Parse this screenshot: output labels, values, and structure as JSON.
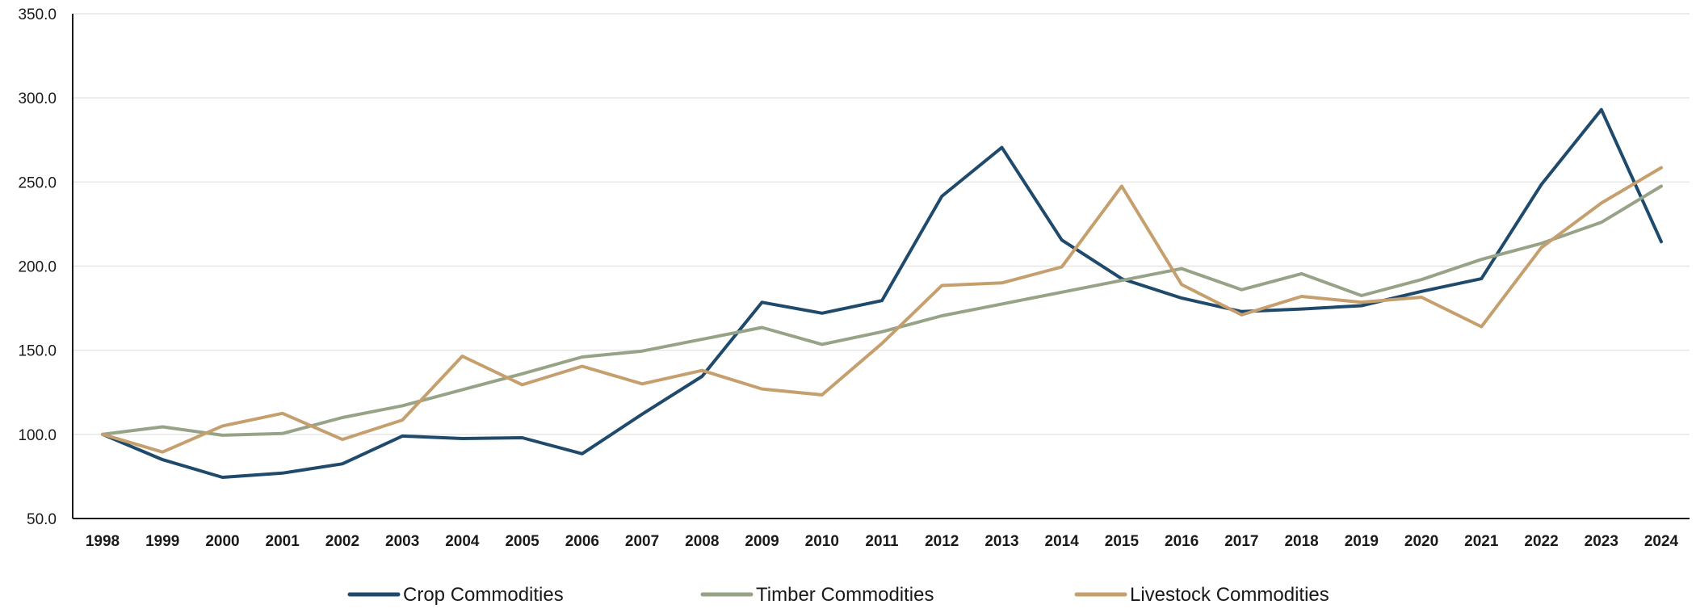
{
  "chart_data": {
    "type": "line",
    "title": "",
    "xlabel": "",
    "ylabel": "",
    "ylim": [
      50,
      350
    ],
    "yticks": [
      "50.0",
      "100.0",
      "150.0",
      "200.0",
      "250.0",
      "300.0",
      "350.0"
    ],
    "yticks_values": [
      50,
      100,
      150,
      200,
      250,
      300,
      350
    ],
    "grid": true,
    "legend_position": "bottom",
    "x": [
      "1998",
      "1999",
      "2000",
      "2001",
      "2002",
      "2003",
      "2004",
      "2005",
      "2006",
      "2007",
      "2008",
      "2009",
      "2010",
      "2011",
      "2012",
      "2013",
      "2014",
      "2015",
      "2016",
      "2017",
      "2018",
      "2019",
      "2020",
      "2021",
      "2022",
      "2023",
      "2024"
    ],
    "series": [
      {
        "name": "Crop Commodities",
        "color": "#1f4a6b",
        "values": [
          100,
          85,
          74.5,
          77,
          82.5,
          99,
          97.5,
          98,
          88.5,
          112,
          134.5,
          178.5,
          172,
          179.5,
          241.5,
          270.5,
          215.5,
          192.5,
          181,
          173,
          174.5,
          176.5,
          185,
          192.5,
          248.5,
          293,
          214.5
        ]
      },
      {
        "name": "Timber Commodities",
        "color": "#97a386",
        "values": [
          100,
          104.5,
          99.5,
          100.5,
          110,
          117,
          126.5,
          136,
          146,
          149.5,
          156.5,
          163.5,
          153.5,
          161,
          170.5,
          177.5,
          184.5,
          191.5,
          198.5,
          186,
          195.5,
          182.5,
          192,
          204,
          213.5,
          226,
          247.5
        ]
      },
      {
        "name": "Livestock Commodities",
        "color": "#c59f6d",
        "values": [
          100,
          89.5,
          105,
          112.5,
          97,
          108.5,
          146.5,
          129.5,
          140.5,
          130,
          138,
          127,
          123.5,
          154,
          188.5,
          190,
          199.5,
          247.5,
          189,
          171,
          182,
          178.5,
          181.5,
          164,
          211,
          237.5,
          258.5
        ]
      }
    ]
  }
}
